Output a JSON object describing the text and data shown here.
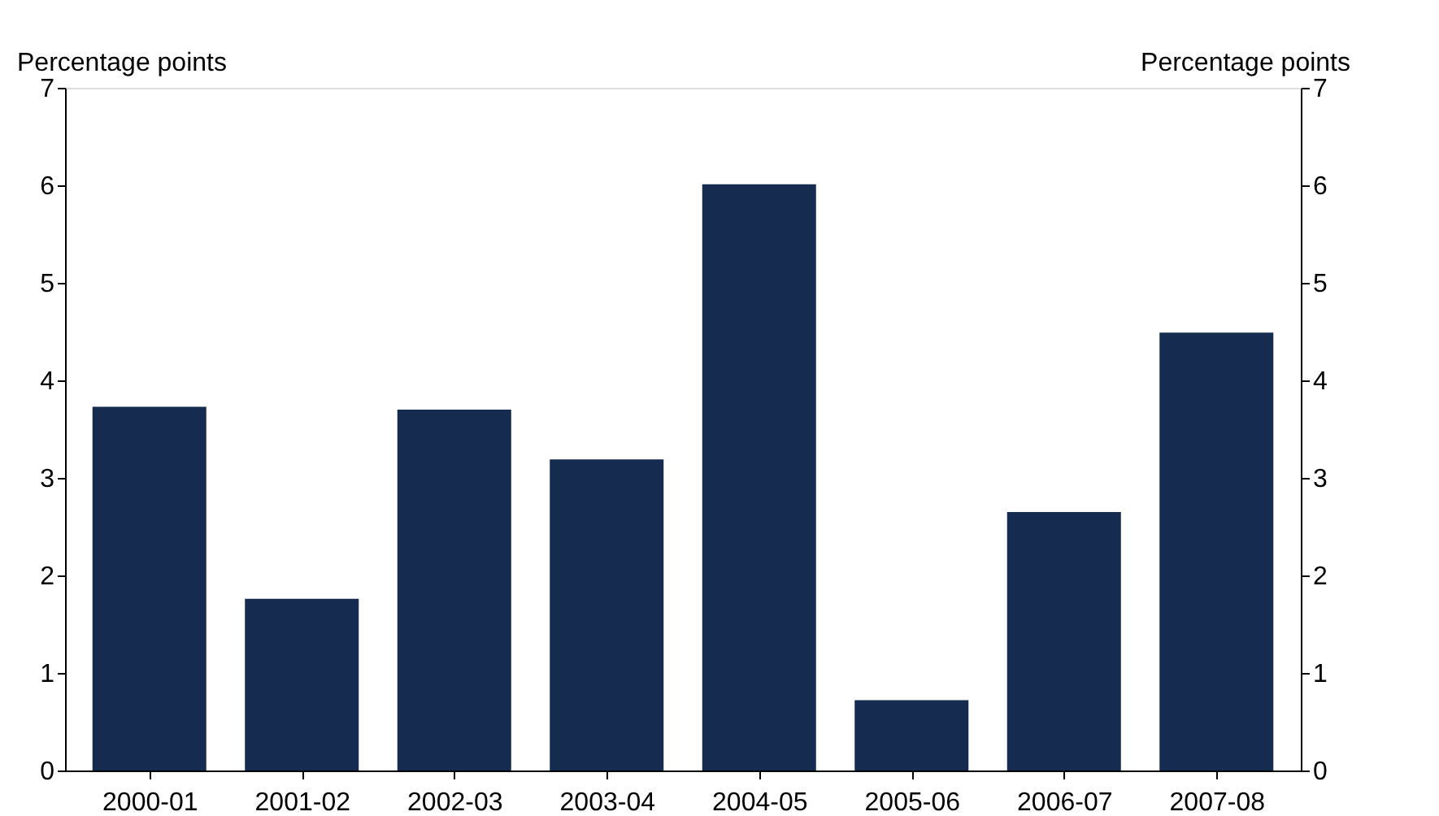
{
  "chart_data": {
    "type": "bar",
    "categories": [
      "2000-01",
      "2001-02",
      "2002-03",
      "2003-04",
      "2004-05",
      "2005-06",
      "2006-07",
      "2007-08"
    ],
    "values": [
      3.73,
      1.76,
      3.7,
      3.19,
      6.01,
      0.72,
      2.65,
      4.49
    ],
    "color": "#162b50",
    "ylabel": "Percentage points",
    "y2label": "Percentage points",
    "ylim": [
      0,
      7
    ],
    "yticks": [
      0,
      1,
      2,
      3,
      4,
      5,
      6,
      7
    ],
    "y2lim": [
      0,
      7
    ],
    "y2ticks": [
      0,
      1,
      2,
      3,
      4,
      5,
      6,
      7
    ],
    "grid": false
  }
}
